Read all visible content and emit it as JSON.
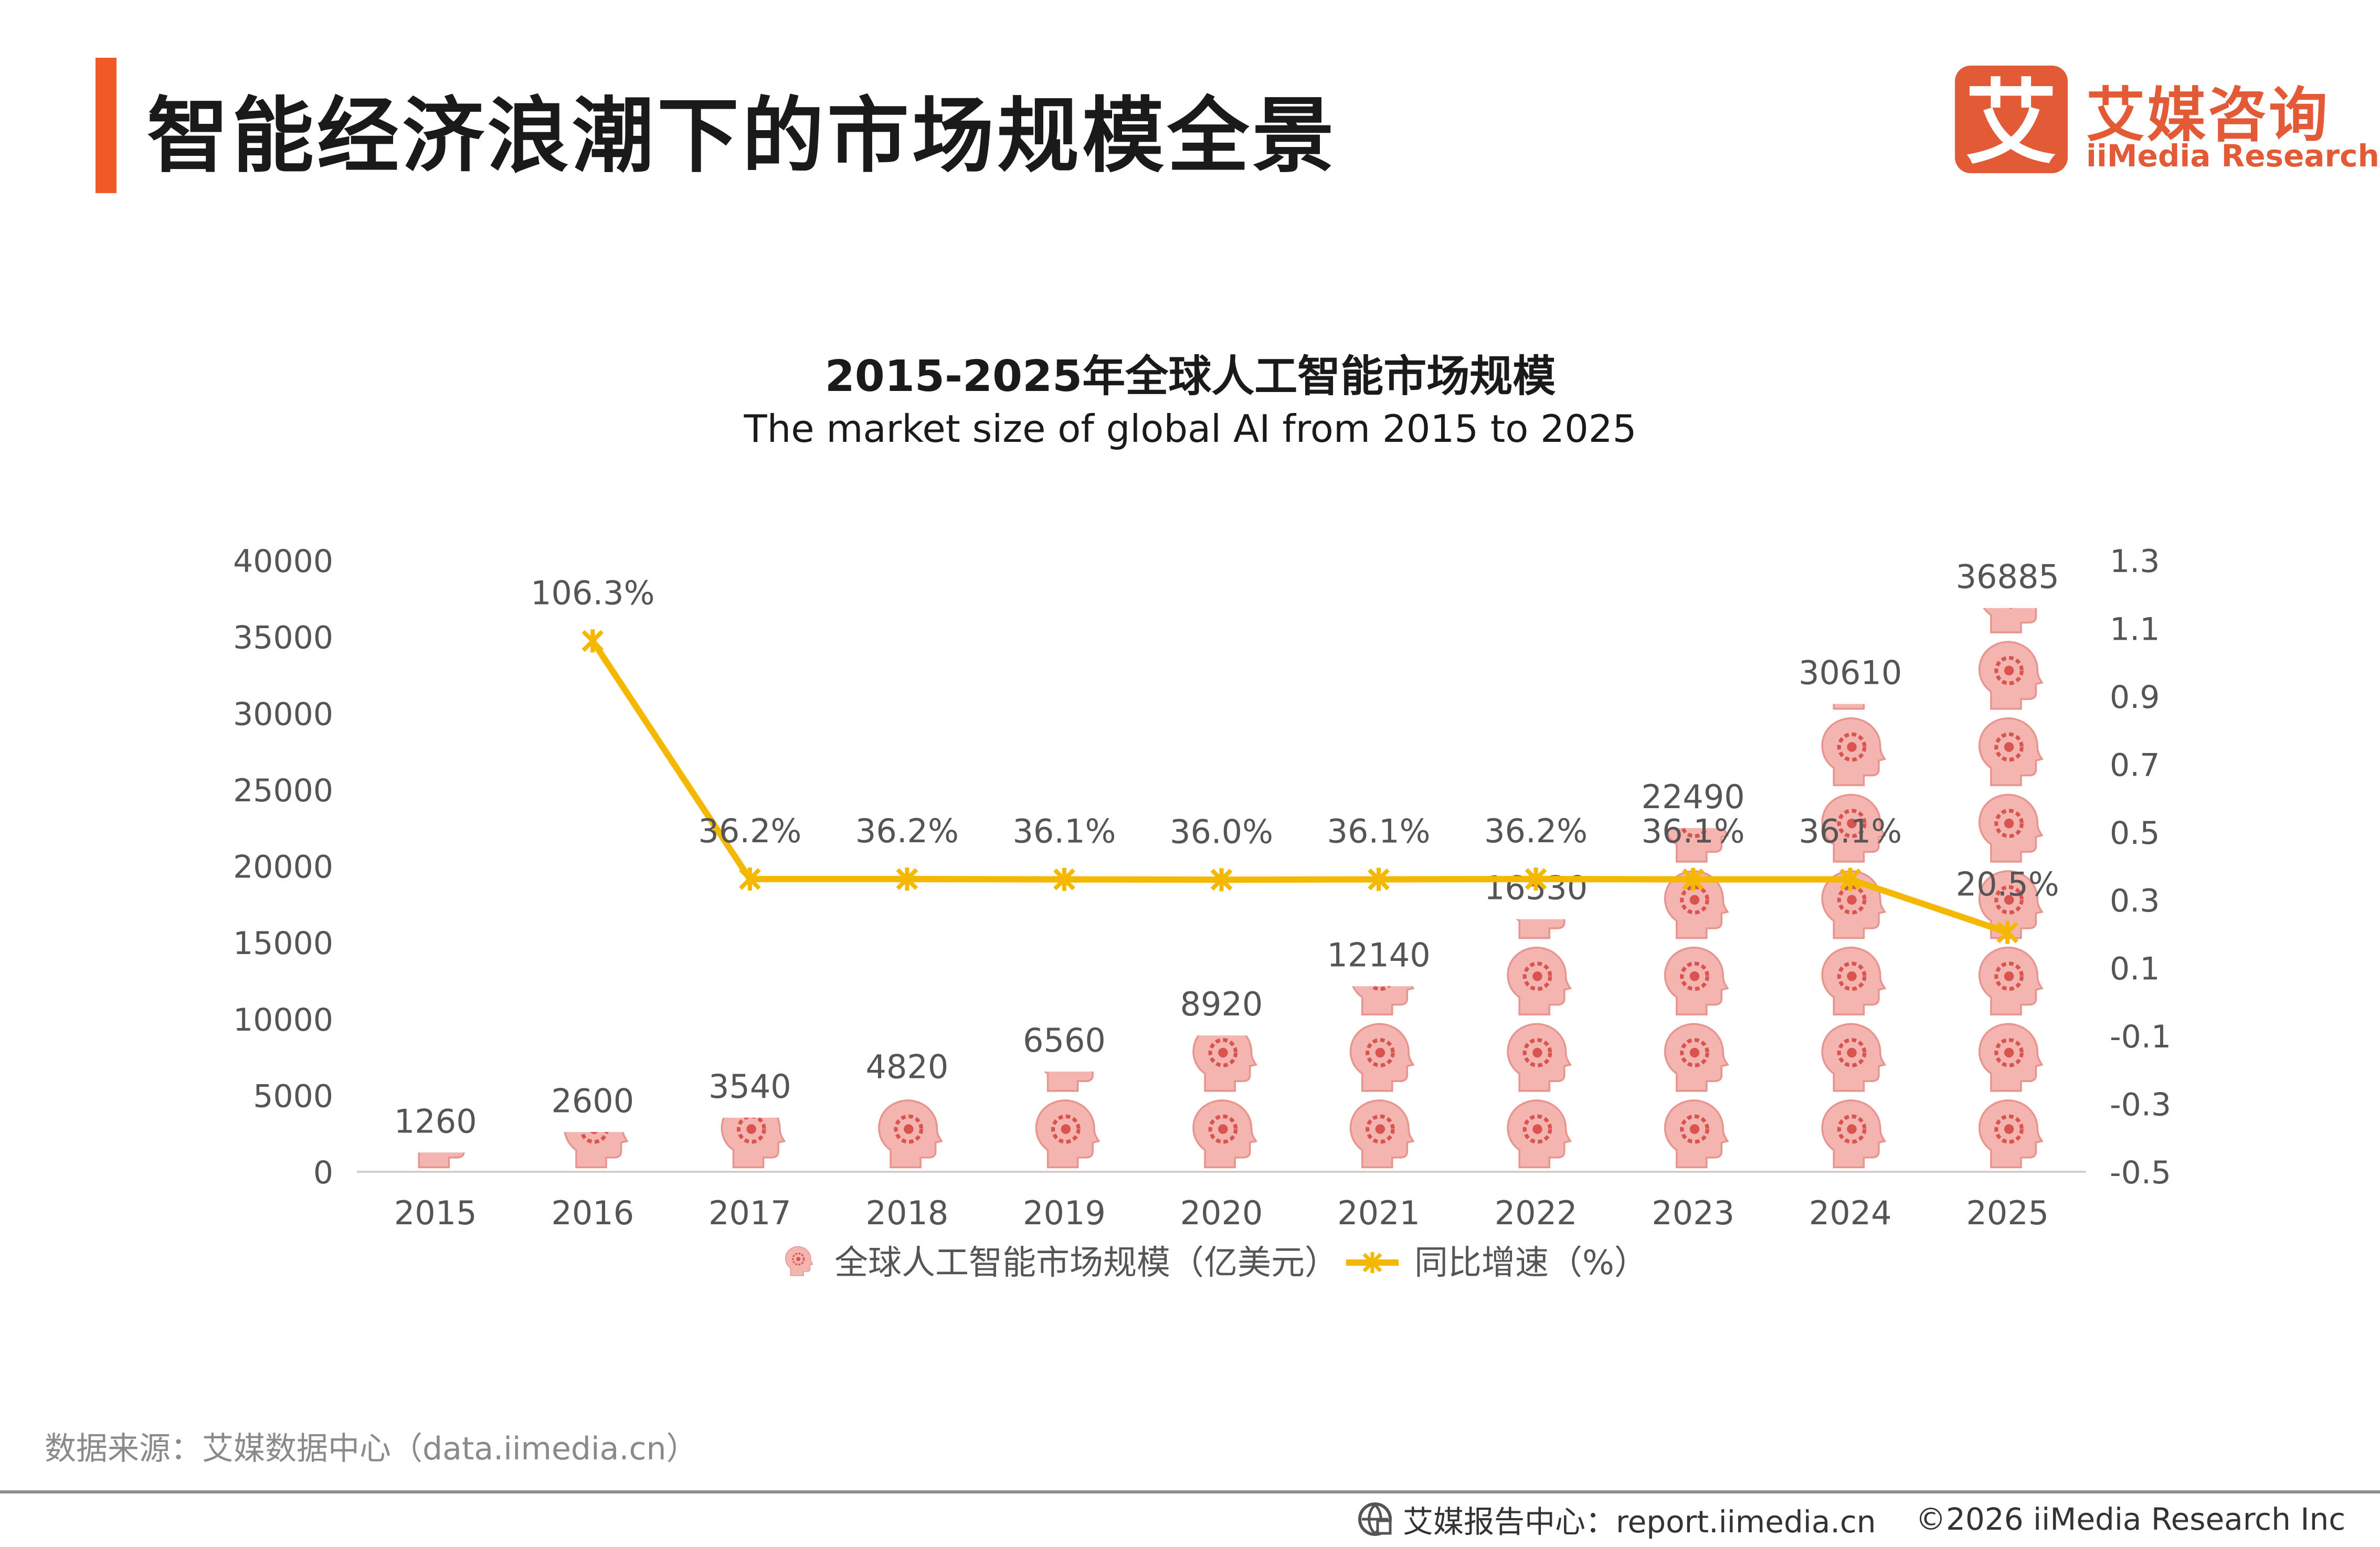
{
  "header": {
    "title": "智能经济浪潮下的市场规模全景",
    "accent_color": "#F05A28"
  },
  "logo": {
    "mark_char": "艾",
    "name_cn": "艾媒咨询",
    "name_en": "iiMedia Research",
    "color": "#E35B36"
  },
  "chart_data": {
    "type": "bar",
    "title": "2015-2025年全球人工智能市场规模",
    "subtitle": "The market size of global AI from 2015 to 2025",
    "categories": [
      "2015",
      "2016",
      "2017",
      "2018",
      "2019",
      "2020",
      "2021",
      "2022",
      "2023",
      "2024",
      "2025"
    ],
    "series": [
      {
        "name": "全球人工智能市场规模（亿美元）",
        "type": "pictorial-bar",
        "axis": "left",
        "values": [
          1260,
          2600,
          3540,
          4820,
          6560,
          8920,
          12140,
          16530,
          22490,
          30610,
          36885
        ],
        "labels": [
          "1260",
          "2600",
          "3540",
          "4820",
          "6560",
          "8920",
          "12140",
          "16530",
          "22490",
          "30610",
          "36885"
        ],
        "color": "#F4B4B0",
        "icon": "head-gear-icon"
      },
      {
        "name": "同比增速（%）",
        "type": "line",
        "axis": "right",
        "values": [
          null,
          1.063,
          0.362,
          0.362,
          0.361,
          0.36,
          0.361,
          0.362,
          0.361,
          0.361,
          0.205
        ],
        "labels": [
          "",
          "106.3%",
          "36.2%",
          "36.2%",
          "36.1%",
          "36.0%",
          "36.1%",
          "36.2%",
          "36.1%",
          "36.1%",
          "20.5%"
        ],
        "color": "#F5B800",
        "marker": "asterisk"
      }
    ],
    "y_left": {
      "min": 0,
      "max": 40000,
      "ticks": [
        "0",
        "5000",
        "10000",
        "15000",
        "20000",
        "25000",
        "30000",
        "35000",
        "40000"
      ]
    },
    "y_right": {
      "min": -0.5,
      "max": 1.3,
      "ticks": [
        "-0.5",
        "-0.3",
        "-0.1",
        "0.1",
        "0.3",
        "0.5",
        "0.7",
        "0.9",
        "1.1",
        "1.3"
      ]
    },
    "grid": false,
    "legend_position": "bottom"
  },
  "footer": {
    "source": "数据来源：艾媒数据中心（data.iimedia.cn）",
    "report_center": "艾媒报告中心：report.iimedia.cn",
    "copyright": "©2026  iiMedia Research  Inc"
  }
}
